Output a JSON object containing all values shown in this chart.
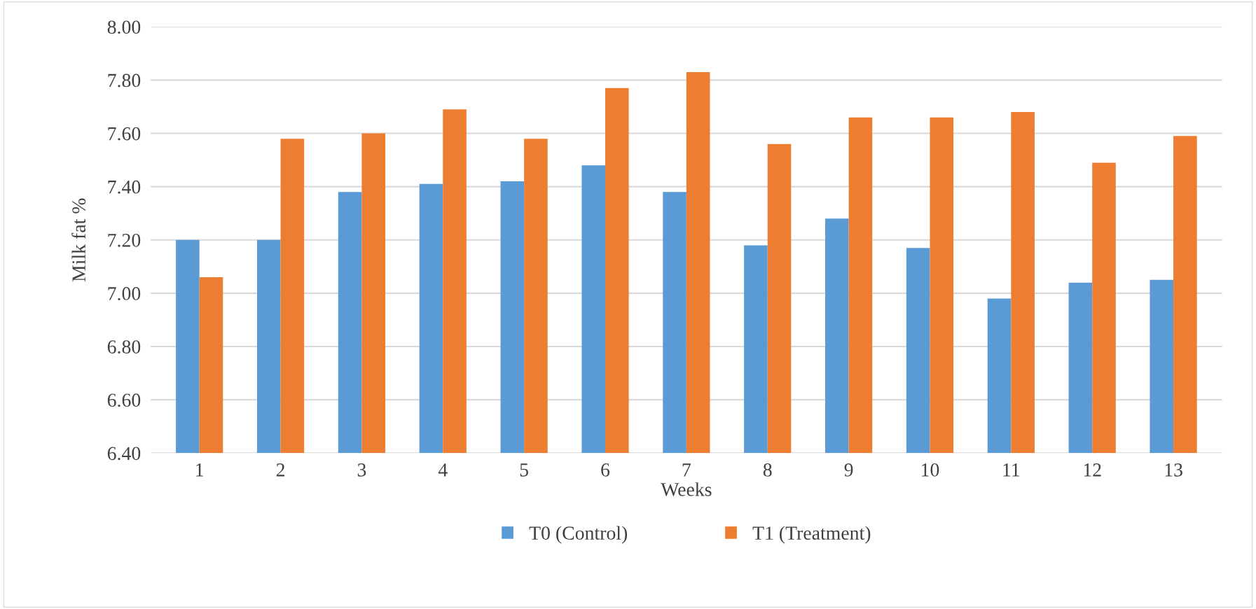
{
  "chart_data": {
    "type": "bar",
    "xlabel": "Weeks",
    "ylabel": "Milk fat %",
    "categories": [
      "1",
      "2",
      "3",
      "4",
      "5",
      "6",
      "7",
      "8",
      "9",
      "10",
      "11",
      "12",
      "13"
    ],
    "series": [
      {
        "name": "T0 (Control)",
        "color": "#5b9bd5",
        "values": [
          7.2,
          7.2,
          7.38,
          7.41,
          7.42,
          7.48,
          7.38,
          7.18,
          7.28,
          7.17,
          6.98,
          7.04,
          7.05
        ]
      },
      {
        "name": "T1 (Treatment)",
        "color": "#ed7d31",
        "values": [
          7.06,
          7.58,
          7.6,
          7.69,
          7.58,
          7.77,
          7.83,
          7.56,
          7.66,
          7.66,
          7.68,
          7.49,
          7.59
        ]
      }
    ],
    "ylim": [
      6.4,
      8.0
    ],
    "yticks": [
      {
        "value": 6.4,
        "label": "6.40"
      },
      {
        "value": 6.6,
        "label": "6.60"
      },
      {
        "value": 6.8,
        "label": "6.80"
      },
      {
        "value": 7.0,
        "label": "7.00"
      },
      {
        "value": 7.2,
        "label": "7.20"
      },
      {
        "value": 7.4,
        "label": "7.40"
      },
      {
        "value": 7.6,
        "label": "7.60"
      },
      {
        "value": 7.8,
        "label": "7.80"
      },
      {
        "value": 8.0,
        "label": "8.00"
      }
    ],
    "grid": "y",
    "legend": "bottom"
  }
}
